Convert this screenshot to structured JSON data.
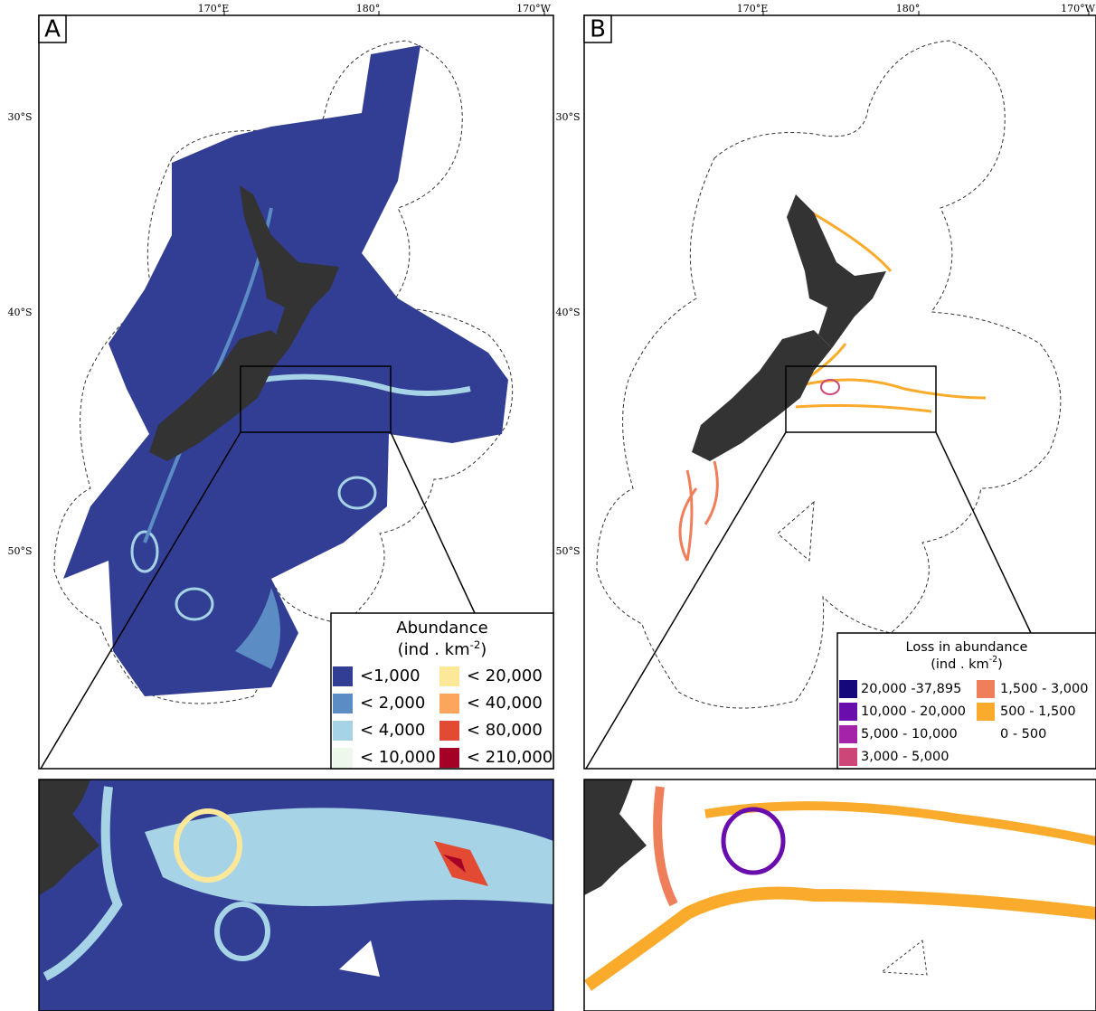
{
  "panels": [
    {
      "label": "A",
      "lon_labels": [
        "170°E",
        "180°",
        "170°W"
      ],
      "lat_labels": [
        "30°S",
        "40°S",
        "50°S"
      ],
      "legend": {
        "title": "Abundance",
        "unit": "(ind . km",
        "unit_exp": "-2",
        "unit_end": ")",
        "items": [
          {
            "label": "<1,000",
            "color": "#323e94"
          },
          {
            "label": "< 2,000",
            "color": "#5b8cc4"
          },
          {
            "label": "< 4,000",
            "color": "#a6d4e6"
          },
          {
            "label": "< 10,000",
            "color": "#eef7ec"
          },
          {
            "label": "< 20,000",
            "color": "#fde89a"
          },
          {
            "label": "< 40,000",
            "color": "#fca55d"
          },
          {
            "label": "< 80,000",
            "color": "#e34a33"
          },
          {
            "label": "< 210,000",
            "color": "#a50026"
          }
        ]
      }
    },
    {
      "label": "B",
      "lon_labels": [
        "170°E",
        "180°",
        "170°W"
      ],
      "lat_labels": [
        "30°S",
        "40°S",
        "50°S"
      ],
      "legend": {
        "title": "Loss in abundance",
        "unit": "(ind . km",
        "unit_exp": "-2",
        "unit_end": ")",
        "items": [
          {
            "label": "20,000 -37,895",
            "color": "#14087a"
          },
          {
            "label": "10,000 - 20,000",
            "color": "#6a0dad"
          },
          {
            "label": "5,000 - 10,000",
            "color": "#a523a8"
          },
          {
            "label": "3,000 - 5,000",
            "color": "#cc4778"
          },
          {
            "label": "1,500 - 3,000",
            "color": "#ef7e5a"
          },
          {
            "label": "500 - 1,500",
            "color": "#fbab2b"
          },
          {
            "label": "0 - 500",
            "color": "#ffffff"
          }
        ]
      }
    }
  ]
}
